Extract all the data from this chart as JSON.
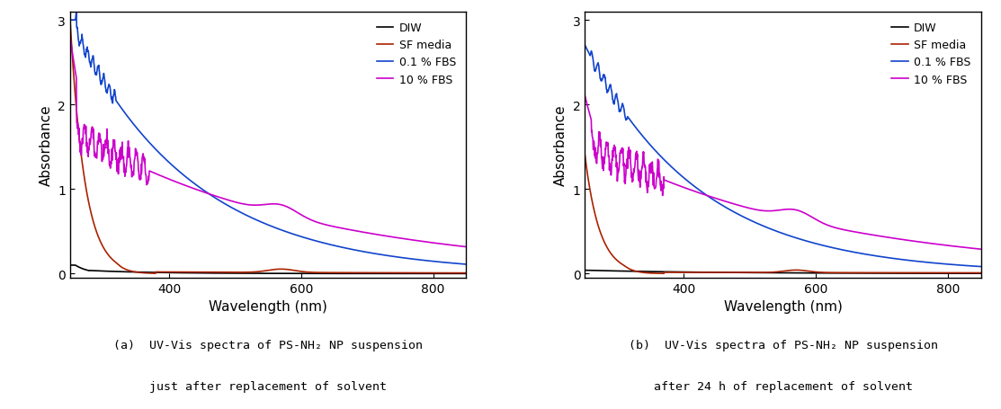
{
  "xlim": [
    250,
    850
  ],
  "ylim": [
    -0.05,
    3.1
  ],
  "yticks": [
    0,
    1,
    2,
    3
  ],
  "xticks": [
    400,
    600,
    800
  ],
  "xlabel": "Wavelength (nm)",
  "ylabel": "Absorbance",
  "colors": {
    "DIW": "#000000",
    "SF_media": "#aa2200",
    "FBS01": "#1144cc",
    "FBS10": "#cc00cc"
  },
  "legend_labels": [
    "DIW",
    "SF media",
    "0.1 % FBS",
    "10 % FBS"
  ],
  "caption_a": "(a)  UV-Vis spectra of PS-NH₂ NP suspension\njust after replacement of solvent",
  "caption_b": "(b)  UV-Vis spectra of PS-NH₂ NP suspension\nafter 24 h of replacement of solvent"
}
